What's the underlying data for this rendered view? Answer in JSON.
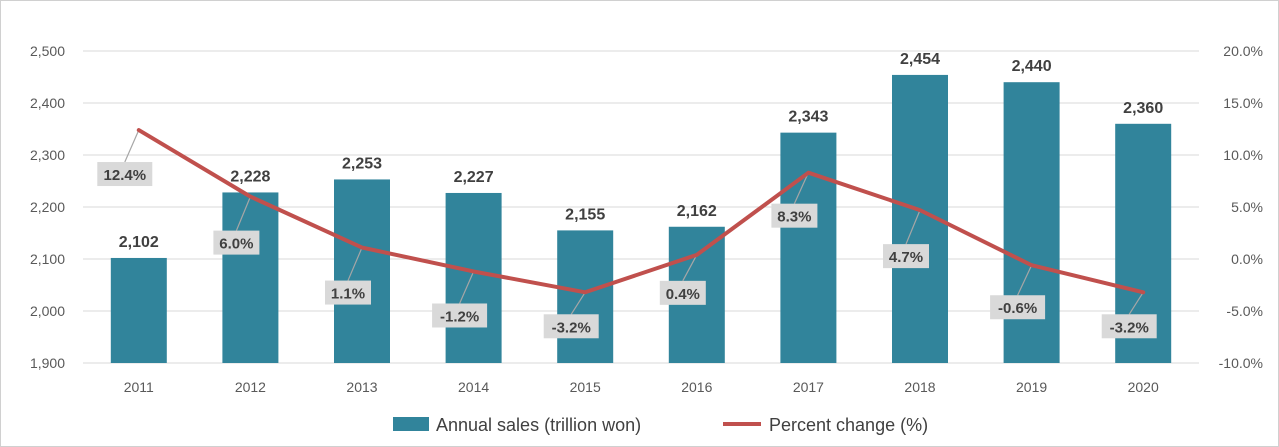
{
  "chart_data": {
    "type": "bar",
    "categories": [
      "2011",
      "2012",
      "2013",
      "2014",
      "2015",
      "2016",
      "2017",
      "2018",
      "2019",
      "2020"
    ],
    "series": [
      {
        "name": "Annual sales (trillion won)",
        "type": "bar",
        "axis": "left",
        "values": [
          2102,
          2228,
          2253,
          2227,
          2155,
          2162,
          2343,
          2454,
          2440,
          2360
        ],
        "labels": [
          "2,102",
          "2,228",
          "2,253",
          "2,227",
          "2,155",
          "2,162",
          "2,343",
          "2,454",
          "2,440",
          "2,360"
        ]
      },
      {
        "name": "Percent change (%)",
        "type": "line",
        "axis": "right",
        "values": [
          12.4,
          6.0,
          1.1,
          -1.2,
          -3.2,
          0.4,
          8.3,
          4.7,
          -0.6,
          -3.2
        ],
        "labels": [
          "12.4%",
          "6.0%",
          "1.1%",
          "-1.2%",
          "-3.2%",
          "0.4%",
          "8.3%",
          "4.7%",
          "-0.6%",
          "-3.2%"
        ]
      }
    ],
    "y_left": {
      "ylim": [
        1900,
        2500
      ],
      "ticks": [
        1900,
        2000,
        2100,
        2200,
        2300,
        2400,
        2500
      ],
      "tick_labels": [
        "1,900",
        "2,000",
        "2,100",
        "2,200",
        "2,300",
        "2,400",
        "2,500"
      ]
    },
    "y_right": {
      "ylim": [
        -10,
        20
      ],
      "ticks": [
        -10,
        -5,
        0,
        5,
        10,
        15,
        20
      ],
      "tick_labels": [
        "-10.0%",
        "-5.0%",
        "0.0%",
        "5.0%",
        "10.0%",
        "15.0%",
        "20.0%"
      ]
    },
    "title": "",
    "xlabel": "",
    "ylabel": "",
    "grid": true,
    "legend_position": "bottom",
    "colors": {
      "bar": "#31849b",
      "line": "#c0504d",
      "grid": "#d9d9d9",
      "label_box": "#d9d9d9"
    }
  }
}
